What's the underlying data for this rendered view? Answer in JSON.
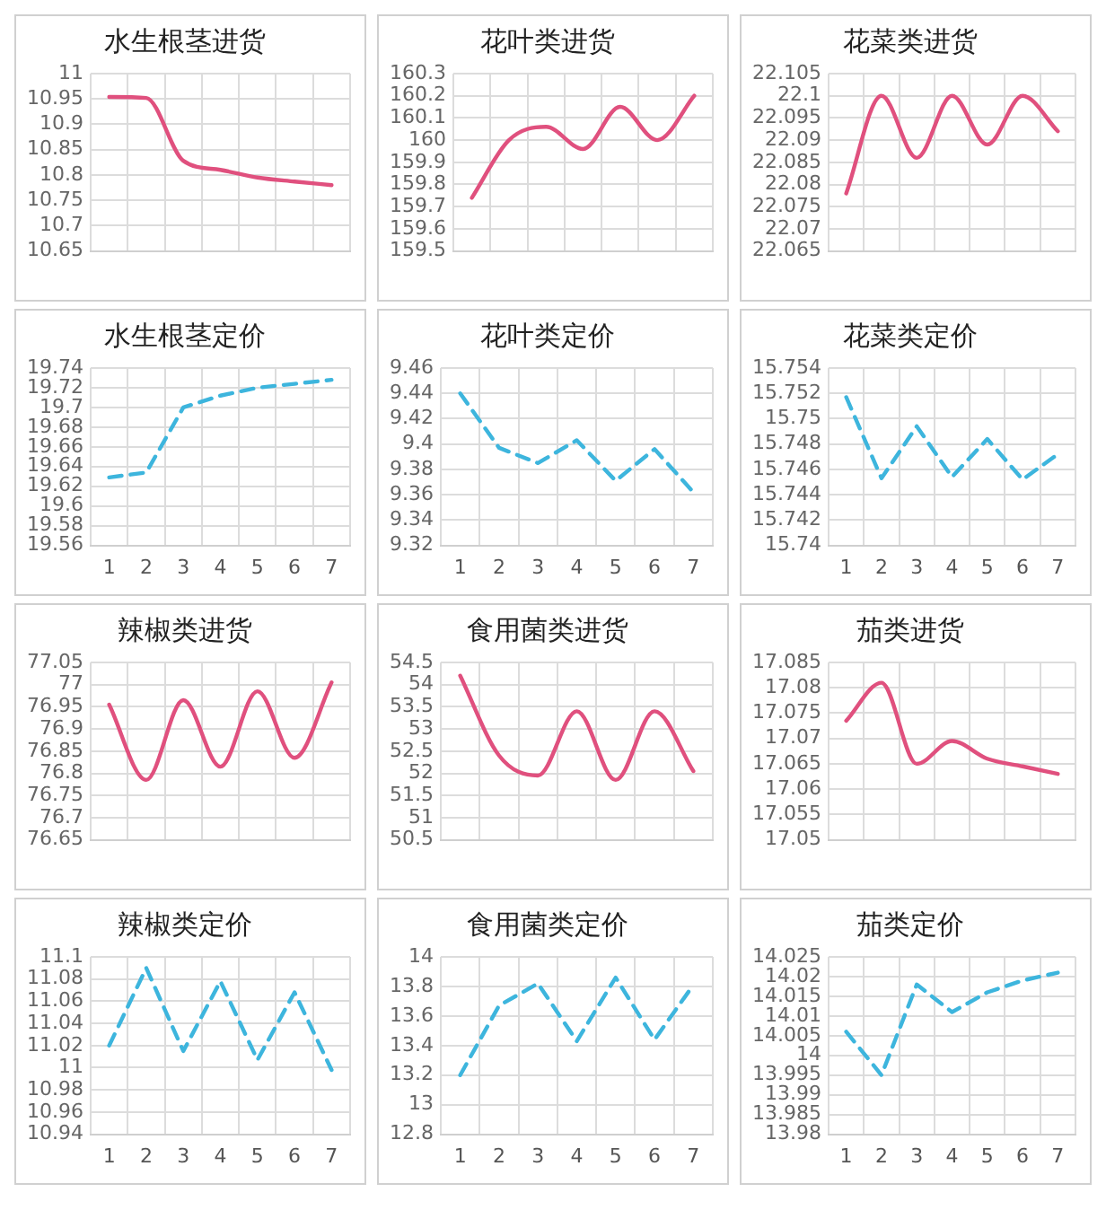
{
  "chart_data": [
    {
      "type": "line",
      "title": "水生根茎进货",
      "categories": [
        null,
        null,
        null,
        null,
        null,
        null,
        null
      ],
      "series": [
        {
          "color": "#e0507e",
          "values": [
            10.954,
            10.952,
            10.828,
            10.81,
            10.795,
            10.787,
            10.78
          ]
        }
      ],
      "ylim": [
        10.65,
        11
      ],
      "yticks": [
        10.65,
        10.7,
        10.75,
        10.8,
        10.85,
        10.9,
        10.95,
        11
      ],
      "grid": true,
      "marker": "none",
      "line_style": "solid"
    },
    {
      "type": "line",
      "title": "花叶类进货",
      "categories": [
        null,
        null,
        null,
        null,
        null,
        null,
        null
      ],
      "series": [
        {
          "color": "#e0507e",
          "values": [
            159.74,
            160.0,
            160.06,
            159.96,
            160.15,
            160.0,
            160.2
          ]
        }
      ],
      "ylim": [
        159.5,
        160.3
      ],
      "yticks": [
        159.5,
        159.6,
        159.7,
        159.8,
        159.9,
        160,
        160.1,
        160.2,
        160.3
      ],
      "grid": true,
      "marker": "none",
      "line_style": "solid"
    },
    {
      "type": "line",
      "title": "花菜类进货",
      "categories": [
        null,
        null,
        null,
        null,
        null,
        null,
        null
      ],
      "series": [
        {
          "color": "#e0507e",
          "values": [
            22.078,
            22.1,
            22.086,
            22.1,
            22.089,
            22.1,
            22.092
          ]
        }
      ],
      "ylim": [
        22.065,
        22.105
      ],
      "yticks": [
        22.065,
        22.07,
        22.075,
        22.08,
        22.085,
        22.09,
        22.095,
        22.1,
        22.105
      ],
      "grid": true,
      "marker": "none",
      "line_style": "solid"
    },
    {
      "type": "line",
      "title": "水生根茎定价",
      "categories": [
        "1",
        "2",
        "3",
        "4",
        "5",
        "6",
        "7"
      ],
      "series": [
        {
          "color": "#3db5dd",
          "values": [
            19.629,
            19.634,
            19.7,
            19.712,
            19.72,
            19.724,
            19.728
          ]
        }
      ],
      "ylim": [
        19.56,
        19.74
      ],
      "yticks": [
        19.56,
        19.58,
        19.6,
        19.62,
        19.64,
        19.66,
        19.68,
        19.7,
        19.72,
        19.74
      ],
      "grid": true,
      "marker": "none",
      "line_style": "dashed"
    },
    {
      "type": "line",
      "title": "花叶类定价",
      "categories": [
        "1",
        "2",
        "3",
        "4",
        "5",
        "6",
        "7"
      ],
      "series": [
        {
          "color": "#3db5dd",
          "values": [
            9.44,
            9.397,
            9.385,
            9.403,
            9.371,
            9.396,
            9.362
          ]
        }
      ],
      "ylim": [
        9.32,
        9.46
      ],
      "yticks": [
        9.32,
        9.34,
        9.36,
        9.38,
        9.4,
        9.42,
        9.44,
        9.46
      ],
      "grid": true,
      "marker": "none",
      "line_style": "dashed"
    },
    {
      "type": "line",
      "title": "花菜类定价",
      "categories": [
        "1",
        "2",
        "3",
        "4",
        "5",
        "6",
        "7"
      ],
      "series": [
        {
          "color": "#3db5dd",
          "values": [
            15.7517,
            15.7453,
            15.7494,
            15.7454,
            15.7484,
            15.7452,
            15.7472
          ]
        }
      ],
      "ylim": [
        15.74,
        15.754
      ],
      "yticks": [
        15.74,
        15.742,
        15.744,
        15.746,
        15.748,
        15.75,
        15.752,
        15.754
      ],
      "grid": true,
      "marker": "none",
      "line_style": "dashed"
    },
    {
      "type": "line",
      "title": "辣椒类进货",
      "categories": [
        null,
        null,
        null,
        null,
        null,
        null,
        null
      ],
      "series": [
        {
          "color": "#e0507e",
          "values": [
            76.955,
            76.785,
            76.965,
            76.815,
            76.985,
            76.835,
            77.005
          ]
        }
      ],
      "ylim": [
        76.65,
        77.05
      ],
      "yticks": [
        76.65,
        76.7,
        76.75,
        76.8,
        76.85,
        76.9,
        76.95,
        77,
        77.05
      ],
      "grid": true,
      "marker": "none",
      "line_style": "solid"
    },
    {
      "type": "line",
      "title": "食用菌类进货",
      "categories": [
        null,
        null,
        null,
        null,
        null,
        null,
        null
      ],
      "series": [
        {
          "color": "#e0507e",
          "values": [
            54.2,
            52.4,
            51.95,
            53.4,
            51.85,
            53.4,
            52.05
          ]
        }
      ],
      "ylim": [
        50.5,
        54.5
      ],
      "yticks": [
        50.5,
        51,
        51.5,
        52,
        52.5,
        53,
        53.5,
        54,
        54.5
      ],
      "grid": true,
      "marker": "none",
      "line_style": "solid"
    },
    {
      "type": "line",
      "title": "茄类进货",
      "categories": [
        null,
        null,
        null,
        null,
        null,
        null,
        null
      ],
      "series": [
        {
          "color": "#e0507e",
          "values": [
            17.0735,
            17.081,
            17.065,
            17.0695,
            17.066,
            17.0645,
            17.063
          ]
        }
      ],
      "ylim": [
        17.05,
        17.085
      ],
      "yticks": [
        17.05,
        17.055,
        17.06,
        17.065,
        17.07,
        17.075,
        17.08,
        17.085
      ],
      "grid": true,
      "marker": "none",
      "line_style": "solid"
    },
    {
      "type": "line",
      "title": "辣椒类定价",
      "categories": [
        "1",
        "2",
        "3",
        "4",
        "5",
        "6",
        "7"
      ],
      "series": [
        {
          "color": "#3db5dd",
          "values": [
            11.02,
            11.09,
            11.015,
            11.078,
            11.007,
            11.068,
            10.998
          ]
        }
      ],
      "ylim": [
        10.94,
        11.1
      ],
      "yticks": [
        10.94,
        10.96,
        10.98,
        11,
        11.02,
        11.04,
        11.06,
        11.08,
        11.1
      ],
      "grid": true,
      "marker": "none",
      "line_style": "dashed"
    },
    {
      "type": "line",
      "title": "食用菌类定价",
      "categories": [
        "1",
        "2",
        "3",
        "4",
        "5",
        "6",
        "7"
      ],
      "series": [
        {
          "color": "#3db5dd",
          "values": [
            13.2,
            13.67,
            13.82,
            13.43,
            13.86,
            13.44,
            13.81
          ]
        }
      ],
      "ylim": [
        12.8,
        14
      ],
      "yticks": [
        12.8,
        13,
        13.2,
        13.4,
        13.6,
        13.8,
        14
      ],
      "grid": true,
      "marker": "none",
      "line_style": "dashed"
    },
    {
      "type": "line",
      "title": "茄类定价",
      "categories": [
        "1",
        "2",
        "3",
        "4",
        "5",
        "6",
        "7"
      ],
      "series": [
        {
          "color": "#3db5dd",
          "values": [
            14.006,
            13.995,
            14.018,
            14.011,
            14.016,
            14.019,
            14.021
          ]
        }
      ],
      "ylim": [
        13.98,
        14.025
      ],
      "yticks": [
        13.98,
        13.985,
        13.99,
        13.995,
        14,
        14.005,
        14.01,
        14.015,
        14.02,
        14.025
      ],
      "grid": true,
      "marker": "none",
      "line_style": "dashed"
    }
  ]
}
